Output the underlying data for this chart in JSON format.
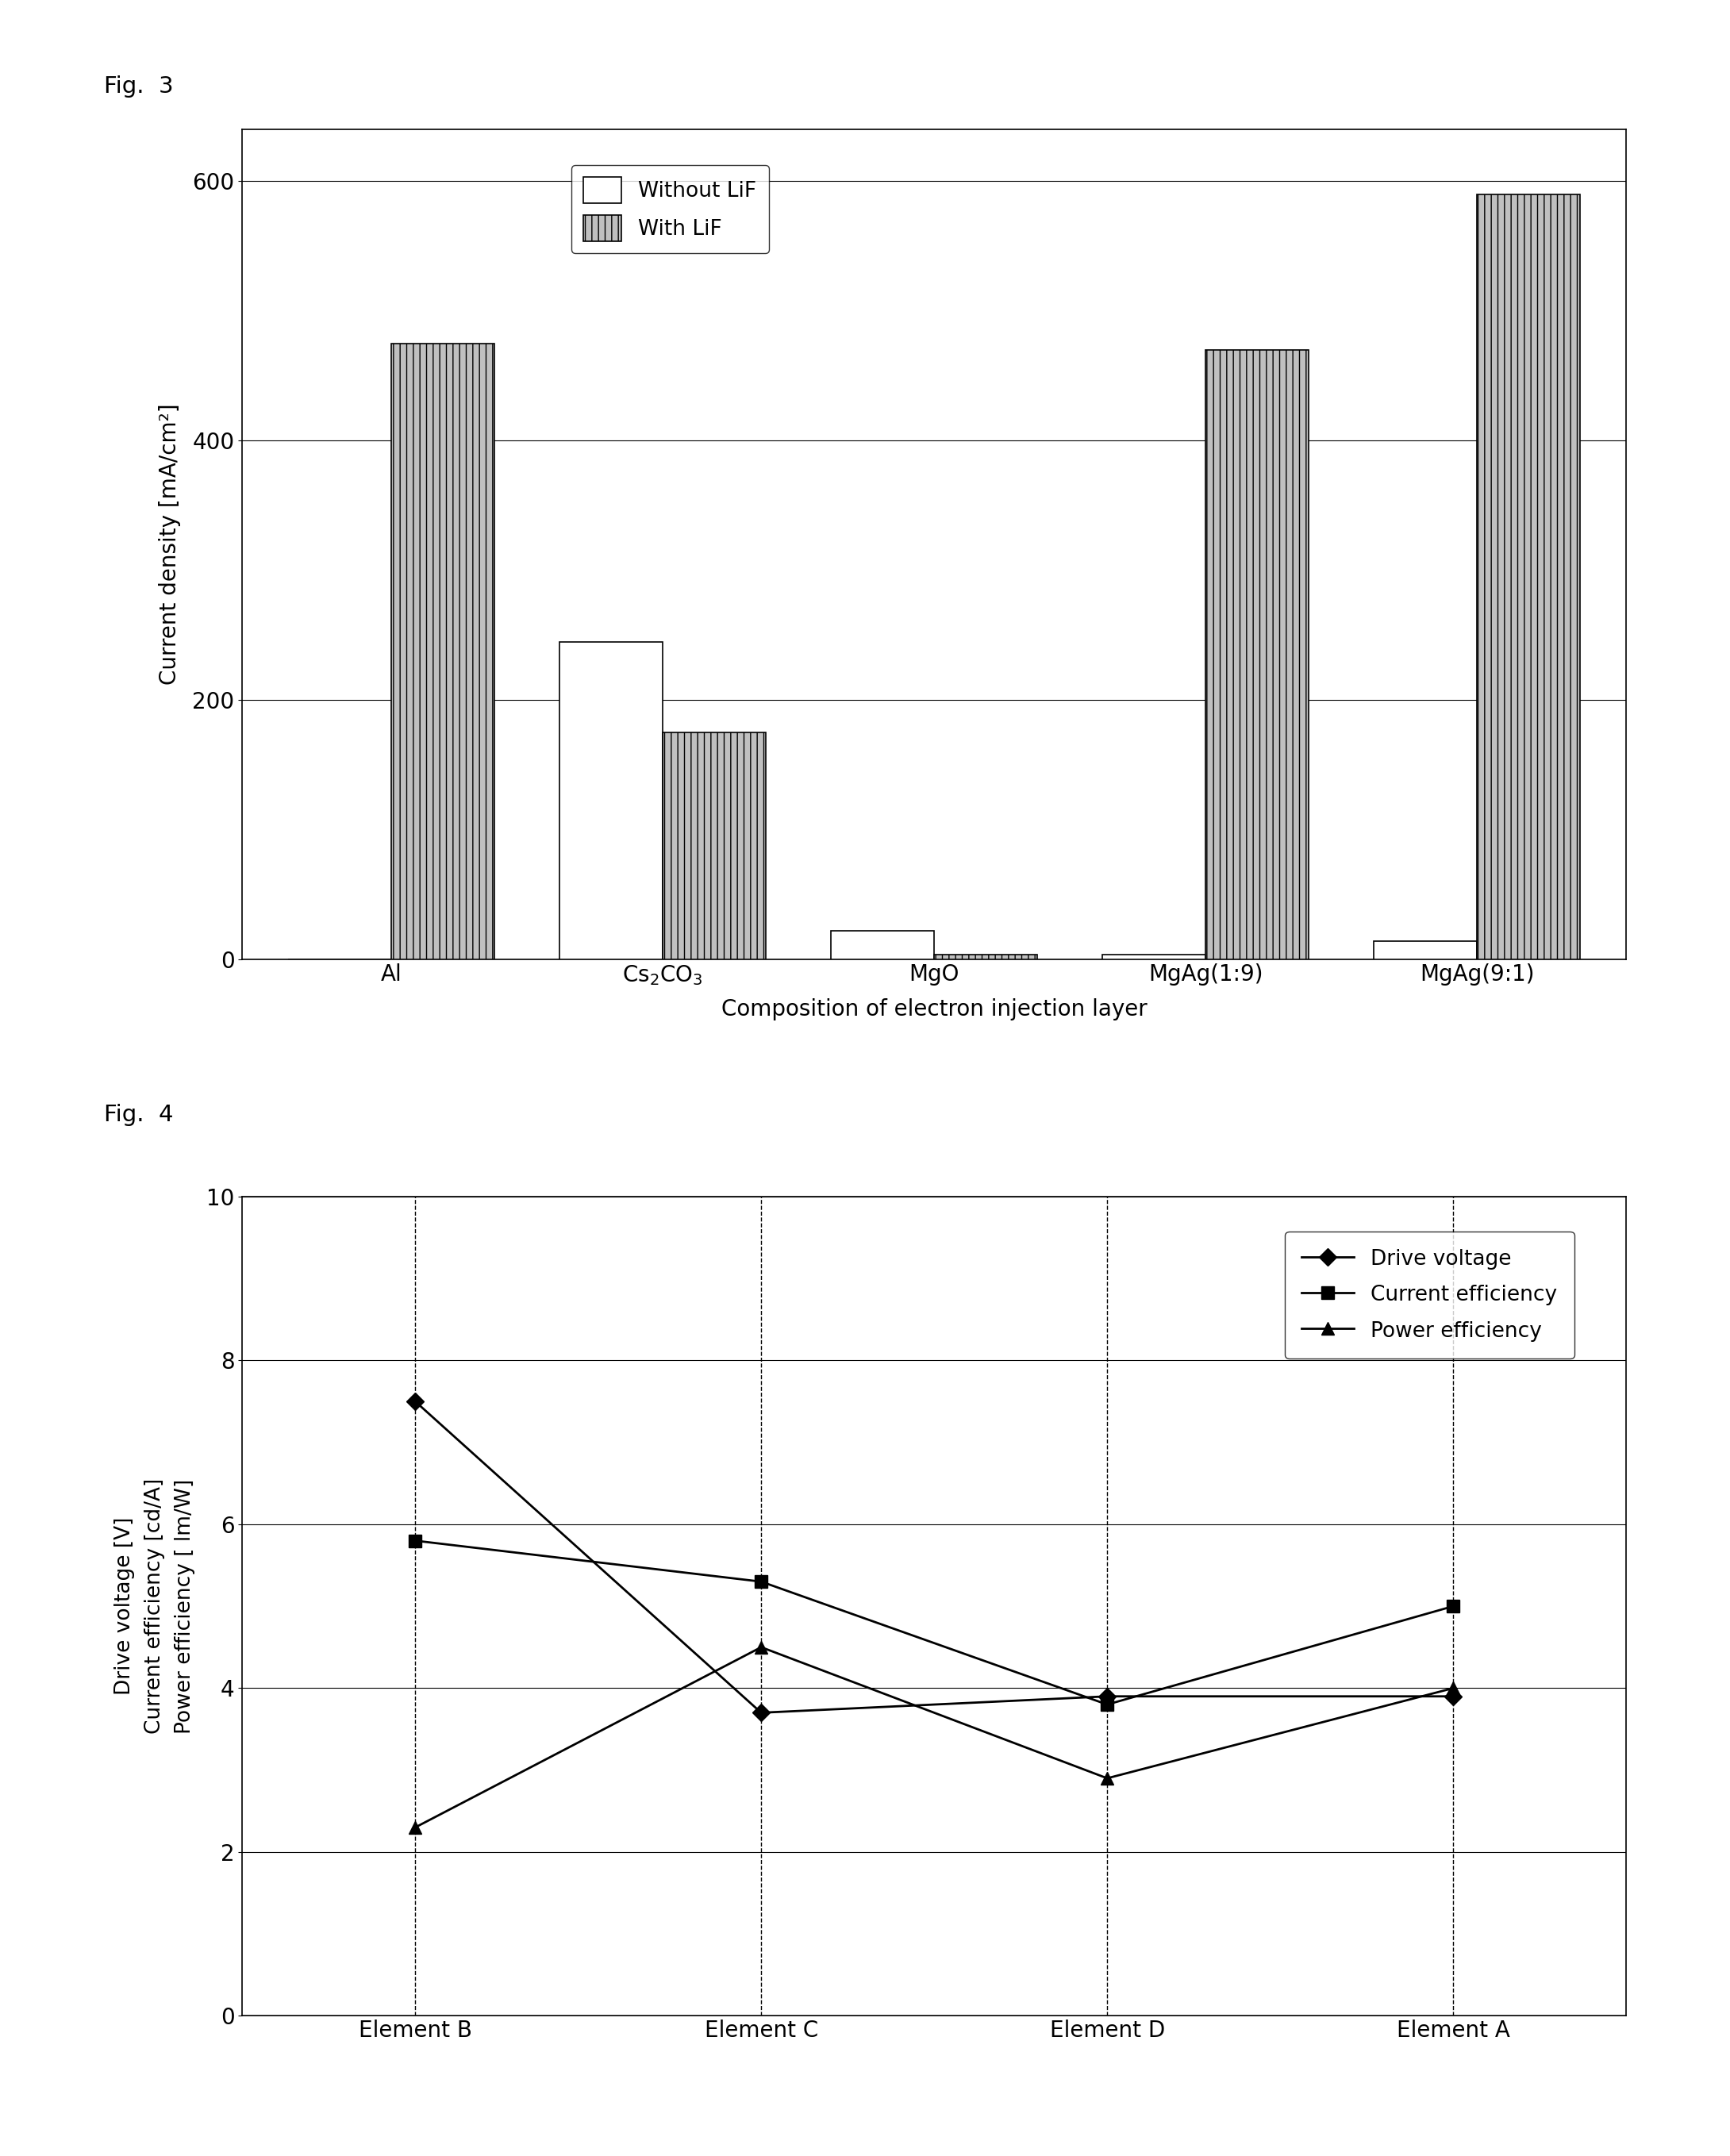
{
  "fig3": {
    "categories": [
      "Al",
      "Cs$_2$CO$_3$",
      "MgO",
      "MgAg(1:9)",
      "MgAg(9:1)"
    ],
    "without_lif": [
      0,
      245,
      22,
      4,
      14
    ],
    "with_lif": [
      475,
      175,
      4,
      470,
      590
    ],
    "ylabel": "Current density [mA/cm²]",
    "xlabel": "Composition of electron injection layer",
    "ylim": [
      0,
      640
    ],
    "yticks": [
      0,
      200,
      400,
      600
    ],
    "bar_width": 0.38,
    "color_without": "#ffffff",
    "color_with": "#c0c0c0",
    "hatch_with": "||"
  },
  "fig4": {
    "categories": [
      "Element B",
      "Element C",
      "Element D",
      "Element A"
    ],
    "drive_voltage": [
      7.5,
      3.7,
      3.9,
      3.9
    ],
    "current_efficiency": [
      5.8,
      5.3,
      3.8,
      5.0
    ],
    "power_efficiency": [
      2.3,
      4.5,
      2.9,
      4.0
    ],
    "ylim": [
      0,
      10
    ],
    "yticks": [
      0,
      2,
      4,
      6,
      8,
      10
    ],
    "legend_drive": "Drive voltage",
    "legend_current": "Current efficiency",
    "legend_power": "Power efficiency"
  }
}
